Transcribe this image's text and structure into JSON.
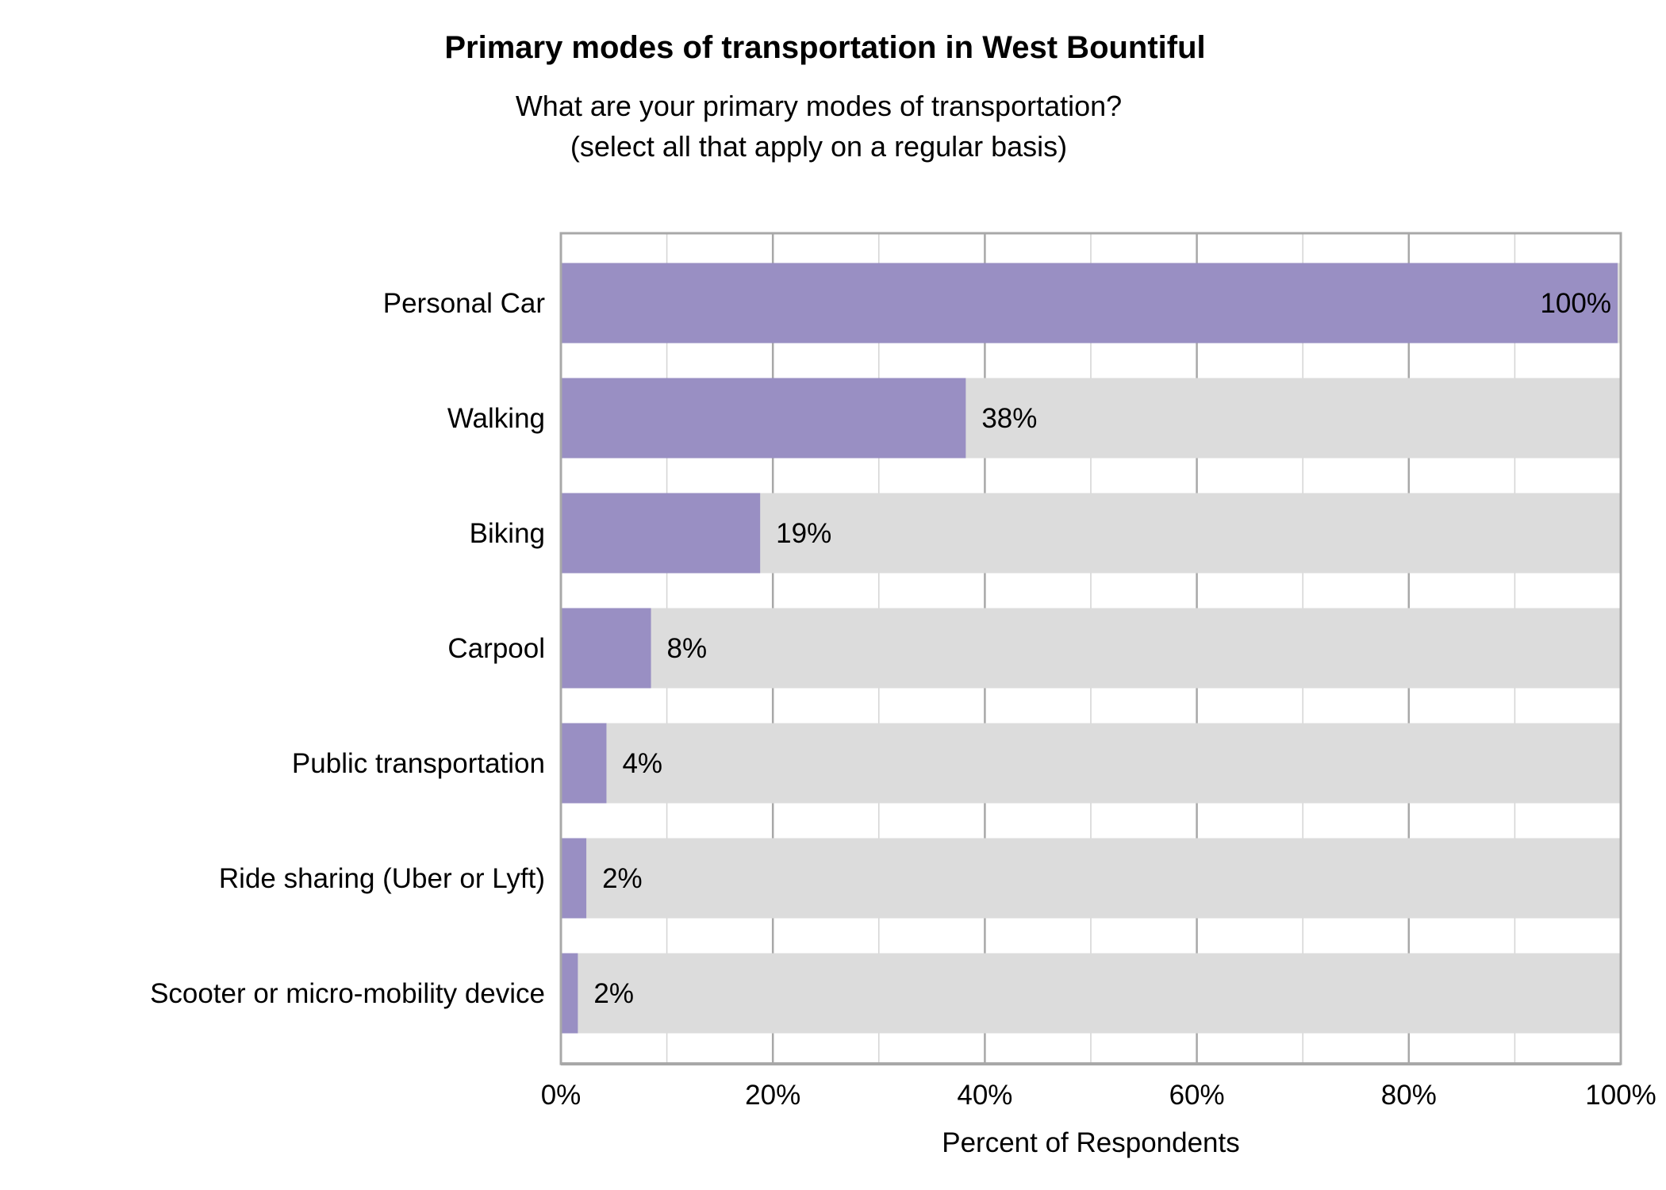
{
  "chart_data": {
    "type": "bar",
    "orientation": "horizontal",
    "title": "Primary modes of transportation in West Bountiful",
    "subtitle_lines": [
      "What are your primary modes of transportation?",
      "(select all that apply on a regular basis)"
    ],
    "xlabel": "Percent of Respondents",
    "ylabel": "",
    "categories": [
      "Personal Car",
      "Walking",
      "Biking",
      "Carpool",
      "Public transportation",
      "Ride sharing (Uber or Lyft)",
      "Scooter or micro-mobility device"
    ],
    "values": [
      99.7,
      38.2,
      18.8,
      8.5,
      4.3,
      2.4,
      1.6
    ],
    "data_labels": [
      "100%",
      "38%",
      "19%",
      "8%",
      "4%",
      "2%",
      "2%"
    ],
    "xlim": [
      0,
      100
    ],
    "xticks": [
      "0%",
      "20%",
      "40%",
      "60%",
      "80%",
      "100%"
    ],
    "grid": true,
    "colors": {
      "bar": "#998fc3",
      "background_bar": "#dcdcdc",
      "grid": "#c8c8c8",
      "axis": "#a8a8a8"
    }
  }
}
